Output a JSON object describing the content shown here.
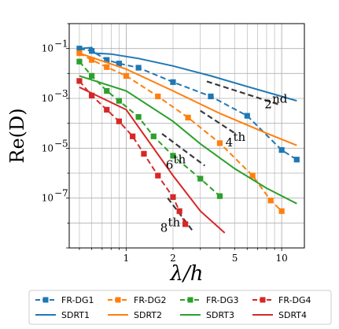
{
  "chart_data": {
    "type": "line",
    "title": "",
    "xlabel": "λ/h",
    "ylabel": "Re(D)",
    "xscale": "log",
    "yscale": "log",
    "xlim": [
      0.43,
      14
    ],
    "ylim": [
      1e-09,
      1
    ],
    "grid": true,
    "x_ticks": [
      {
        "value": 1,
        "label": "1"
      },
      {
        "value": 2,
        "label": "2"
      },
      {
        "value": 5,
        "label": "5"
      },
      {
        "value": 10,
        "label": "10"
      }
    ],
    "y_ticks": [
      {
        "value": 0.1,
        "label": "10",
        "exp": "−1"
      },
      {
        "value": 0.001,
        "label": "10",
        "exp": "−3"
      },
      {
        "value": 1e-05,
        "label": "10",
        "exp": "−5"
      },
      {
        "value": 1e-07,
        "label": "10",
        "exp": "−7"
      }
    ],
    "legend_position": "bottom",
    "series": [
      {
        "name": "FR-DG1",
        "style": "dashed-marker",
        "color": "#1f77b4",
        "x": [
          0.5,
          0.6,
          0.75,
          0.9,
          1.2,
          2.0,
          3.5,
          6.0,
          10.0,
          12.5
        ],
        "y": [
          0.1,
          0.08,
          0.035,
          0.025,
          0.017,
          0.0045,
          0.0012,
          0.0002,
          8.5e-06,
          3.5e-06
        ]
      },
      {
        "name": "SDRT1",
        "style": "solid",
        "color": "#1f77b4",
        "x": [
          0.5,
          0.6,
          0.63,
          0.8,
          1.2,
          2.0,
          3.5,
          6.0,
          10.0,
          12.5
        ],
        "y": [
          0.1,
          0.11,
          0.065,
          0.06,
          0.04,
          0.02,
          0.008,
          0.003,
          0.0012,
          0.0008
        ]
      },
      {
        "name": "FR-DG2",
        "style": "dashed-marker",
        "color": "#ff7f0e",
        "x": [
          0.5,
          0.6,
          0.75,
          1.0,
          1.6,
          2.5,
          4.0,
          6.5,
          8.5,
          10.0
        ],
        "y": [
          0.065,
          0.035,
          0.018,
          0.008,
          0.0012,
          0.00017,
          1.6e-05,
          8e-07,
          8e-08,
          3e-08
        ]
      },
      {
        "name": "SDRT2",
        "style": "solid",
        "color": "#ff7f0e",
        "x": [
          0.5,
          1.0,
          2.0,
          4.0,
          8.0,
          12.5
        ],
        "y": [
          0.065,
          0.015,
          0.002,
          0.00025,
          4e-05,
          1.3e-05
        ]
      },
      {
        "name": "FR-DG3",
        "style": "dashed-marker",
        "color": "#2ca02c",
        "x": [
          0.5,
          0.6,
          0.75,
          0.9,
          1.2,
          1.5,
          2.0,
          3.0,
          4.0
        ],
        "y": [
          0.03,
          0.008,
          0.002,
          0.0008,
          0.00018,
          3e-05,
          5e-06,
          6e-07,
          1.2e-07
        ]
      },
      {
        "name": "SDRT3",
        "style": "solid",
        "color": "#2ca02c",
        "x": [
          0.5,
          1.0,
          2.0,
          3.0,
          5.0,
          8.0,
          12.5
        ],
        "y": [
          0.008,
          0.002,
          0.00012,
          1.5e-05,
          1.5e-06,
          2.5e-07,
          6e-08
        ]
      },
      {
        "name": "FR-DG4",
        "style": "dashed-marker",
        "color": "#d62728",
        "x": [
          0.5,
          0.6,
          0.75,
          0.9,
          1.1,
          1.3,
          1.6,
          2.0,
          2.2,
          2.4
        ],
        "y": [
          0.005,
          0.0013,
          0.00035,
          0.00012,
          3e-05,
          6e-06,
          8e-07,
          1.1e-07,
          3e-08,
          9e-09
        ]
      },
      {
        "name": "SDRT4",
        "style": "solid",
        "color": "#d62728",
        "x": [
          0.5,
          1.0,
          2.0,
          3.0,
          4.3
        ],
        "y": [
          0.0028,
          0.00035,
          8e-07,
          3e-08,
          4e-09
        ]
      }
    ],
    "reference_lines": [
      {
        "order": "2nd",
        "label": "2",
        "sup": "nd",
        "x": [
          3.3,
          9.5
        ],
        "y": [
          0.0048,
          0.00058
        ]
      },
      {
        "order": "4th",
        "label": "4",
        "sup": "th",
        "x": [
          3.0,
          5.0
        ],
        "y": [
          0.00032,
          4e-05
        ]
      },
      {
        "order": "6th",
        "label": "6",
        "sup": "th",
        "x": [
          1.7,
          3.2
        ],
        "y": [
          3.8e-05,
          2e-06
        ]
      },
      {
        "order": "8th",
        "label": "8",
        "sup": "th",
        "x": [
          1.85,
          2.7
        ],
        "y": [
          1e-07,
          4.5e-09
        ]
      }
    ],
    "annotations": [
      {
        "ref": "2nd",
        "at_x": 8.2,
        "at_y": 0.0004
      },
      {
        "ref": "4th",
        "at_x": 4.6,
        "at_y": 1.2e-05
      },
      {
        "ref": "6th",
        "at_x": 1.9,
        "at_y": 1.5e-06
      },
      {
        "ref": "8th",
        "at_x": 1.75,
        "at_y": 4.5e-09
      }
    ]
  }
}
